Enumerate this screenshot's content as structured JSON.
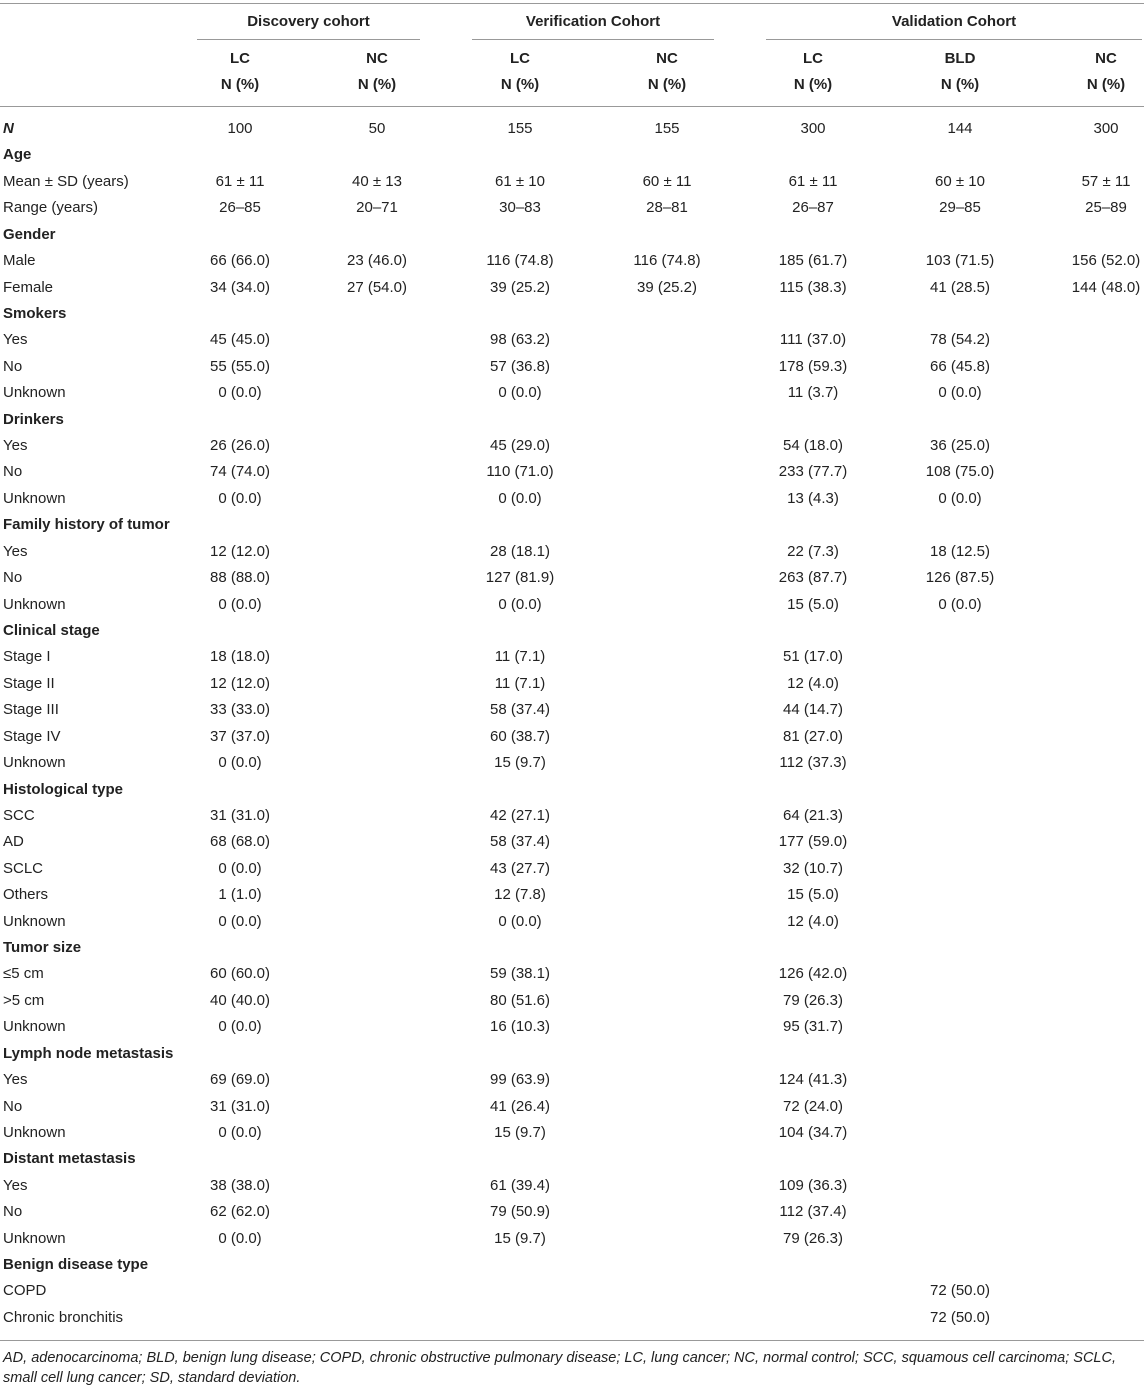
{
  "table": {
    "groups": [
      {
        "title": "Discovery cohort",
        "columns": [
          {
            "label": "LC",
            "unit": "N (%)"
          },
          {
            "label": "NC",
            "unit": "N (%)"
          }
        ]
      },
      {
        "title": "Verification Cohort",
        "columns": [
          {
            "label": "LC",
            "unit": "N (%)"
          },
          {
            "label": "NC",
            "unit": "N (%)"
          }
        ]
      },
      {
        "title": "Validation Cohort",
        "columns": [
          {
            "label": "LC",
            "unit": "N (%)"
          },
          {
            "label": "BLD",
            "unit": "N (%)"
          },
          {
            "label": "NC",
            "unit": "N (%)"
          }
        ]
      }
    ],
    "rows": [
      {
        "label": "N",
        "cells": [
          "100",
          "50",
          "155",
          "155",
          "300",
          "144",
          "300"
        ]
      },
      {
        "section": "Age"
      },
      {
        "label": "Mean ± SD (years)",
        "cells": [
          "61 ± 11",
          "40 ± 13",
          "61 ± 10",
          "60 ± 11",
          "61 ± 11",
          "60 ± 10",
          "57 ± 11"
        ]
      },
      {
        "label": "Range (years)",
        "cells": [
          "26–85",
          "20–71",
          "30–83",
          "28–81",
          "26–87",
          "29–85",
          "25–89"
        ]
      },
      {
        "section": "Gender"
      },
      {
        "label": "Male",
        "cells": [
          "66 (66.0)",
          "23 (46.0)",
          "116 (74.8)",
          "116 (74.8)",
          "185 (61.7)",
          "103 (71.5)",
          "156 (52.0)"
        ]
      },
      {
        "label": "Female",
        "cells": [
          "34 (34.0)",
          "27 (54.0)",
          "39 (25.2)",
          "39 (25.2)",
          "115 (38.3)",
          "41 (28.5)",
          "144 (48.0)"
        ]
      },
      {
        "section": "Smokers"
      },
      {
        "label": "Yes",
        "cells": [
          "45 (45.0)",
          null,
          "98 (63.2)",
          null,
          "111 (37.0)",
          "78 (54.2)",
          null
        ]
      },
      {
        "label": "No",
        "cells": [
          "55 (55.0)",
          null,
          "57 (36.8)",
          null,
          "178 (59.3)",
          "66 (45.8)",
          null
        ]
      },
      {
        "label": "Unknown",
        "cells": [
          "0 (0.0)",
          null,
          "0 (0.0)",
          null,
          "11 (3.7)",
          "0 (0.0)",
          null
        ]
      },
      {
        "section": "Drinkers"
      },
      {
        "label": "Yes",
        "cells": [
          "26 (26.0)",
          null,
          "45 (29.0)",
          null,
          "54 (18.0)",
          "36 (25.0)",
          null
        ]
      },
      {
        "label": "No",
        "cells": [
          "74 (74.0)",
          null,
          "110 (71.0)",
          null,
          "233 (77.7)",
          "108 (75.0)",
          null
        ]
      },
      {
        "label": "Unknown",
        "cells": [
          "0 (0.0)",
          null,
          "0 (0.0)",
          null,
          "13 (4.3)",
          "0 (0.0)",
          null
        ]
      },
      {
        "section": "Family history of tumor"
      },
      {
        "label": "Yes",
        "cells": [
          "12 (12.0)",
          null,
          "28 (18.1)",
          null,
          "22 (7.3)",
          "18 (12.5)",
          null
        ]
      },
      {
        "label": "No",
        "cells": [
          "88 (88.0)",
          null,
          "127 (81.9)",
          null,
          "263 (87.7)",
          "126 (87.5)",
          null
        ]
      },
      {
        "label": "Unknown",
        "cells": [
          "0 (0.0)",
          null,
          "0 (0.0)",
          null,
          "15 (5.0)",
          "0 (0.0)",
          null
        ]
      },
      {
        "section": "Clinical stage"
      },
      {
        "label": "Stage I",
        "cells": [
          "18 (18.0)",
          null,
          "11 (7.1)",
          null,
          "51 (17.0)",
          null,
          null
        ]
      },
      {
        "label": "Stage II",
        "cells": [
          "12 (12.0)",
          null,
          "11 (7.1)",
          null,
          "12 (4.0)",
          null,
          null
        ]
      },
      {
        "label": "Stage III",
        "cells": [
          "33 (33.0)",
          null,
          "58 (37.4)",
          null,
          "44 (14.7)",
          null,
          null
        ]
      },
      {
        "label": "Stage IV",
        "cells": [
          "37 (37.0)",
          null,
          "60 (38.7)",
          null,
          "81 (27.0)",
          null,
          null
        ]
      },
      {
        "label": "Unknown",
        "cells": [
          "0 (0.0)",
          null,
          "15 (9.7)",
          null,
          "112 (37.3)",
          null,
          null
        ]
      },
      {
        "section": "Histological type"
      },
      {
        "label": "SCC",
        "cells": [
          "31 (31.0)",
          null,
          "42 (27.1)",
          null,
          "64 (21.3)",
          null,
          null
        ]
      },
      {
        "label": "AD",
        "cells": [
          "68 (68.0)",
          null,
          "58 (37.4)",
          null,
          "177 (59.0)",
          null,
          null
        ]
      },
      {
        "label": "SCLC",
        "cells": [
          "0 (0.0)",
          null,
          "43 (27.7)",
          null,
          "32 (10.7)",
          null,
          null
        ]
      },
      {
        "label": "Others",
        "cells": [
          "1 (1.0)",
          null,
          "12 (7.8)",
          null,
          "15 (5.0)",
          null,
          null
        ]
      },
      {
        "label": "Unknown",
        "cells": [
          "0 (0.0)",
          null,
          "0 (0.0)",
          null,
          "12 (4.0)",
          null,
          null
        ]
      },
      {
        "section": "Tumor size"
      },
      {
        "label": "≤5 cm",
        "cells": [
          "60 (60.0)",
          null,
          "59 (38.1)",
          null,
          "126 (42.0)",
          null,
          null
        ]
      },
      {
        "label": ">5 cm",
        "cells": [
          "40 (40.0)",
          null,
          "80 (51.6)",
          null,
          "79 (26.3)",
          null,
          null
        ]
      },
      {
        "label": "Unknown",
        "cells": [
          "0 (0.0)",
          null,
          "16 (10.3)",
          null,
          "95 (31.7)",
          null,
          null
        ]
      },
      {
        "section": "Lymph node metastasis"
      },
      {
        "label": "Yes",
        "cells": [
          "69 (69.0)",
          null,
          "99 (63.9)",
          null,
          "124 (41.3)",
          null,
          null
        ]
      },
      {
        "label": "No",
        "cells": [
          "31 (31.0)",
          null,
          "41 (26.4)",
          null,
          "72 (24.0)",
          null,
          null
        ]
      },
      {
        "label": "Unknown",
        "cells": [
          "0 (0.0)",
          null,
          "15 (9.7)",
          null,
          "104 (34.7)",
          null,
          null
        ]
      },
      {
        "section": "Distant metastasis"
      },
      {
        "label": "Yes",
        "cells": [
          "38 (38.0)",
          null,
          "61 (39.4)",
          null,
          "109 (36.3)",
          null,
          null
        ]
      },
      {
        "label": "No",
        "cells": [
          "62 (62.0)",
          null,
          "79 (50.9)",
          null,
          "112 (37.4)",
          null,
          null
        ]
      },
      {
        "label": "Unknown",
        "cells": [
          "0 (0.0)",
          null,
          "15 (9.7)",
          null,
          "79 (26.3)",
          null,
          null
        ]
      },
      {
        "section": "Benign disease type"
      },
      {
        "label": "COPD",
        "cells": [
          null,
          null,
          null,
          null,
          null,
          "72 (50.0)",
          null
        ]
      },
      {
        "label": "Chronic bronchitis",
        "cells": [
          null,
          null,
          null,
          null,
          null,
          "72 (50.0)",
          null
        ]
      }
    ],
    "footnote": "AD, adenocarcinoma; BLD, benign lung disease; COPD, chronic obstructive pulmonary disease; LC, lung cancer; NC, normal control; SCC, squamous cell carcinoma; SCLC, small cell lung cancer; SD, standard deviation."
  }
}
